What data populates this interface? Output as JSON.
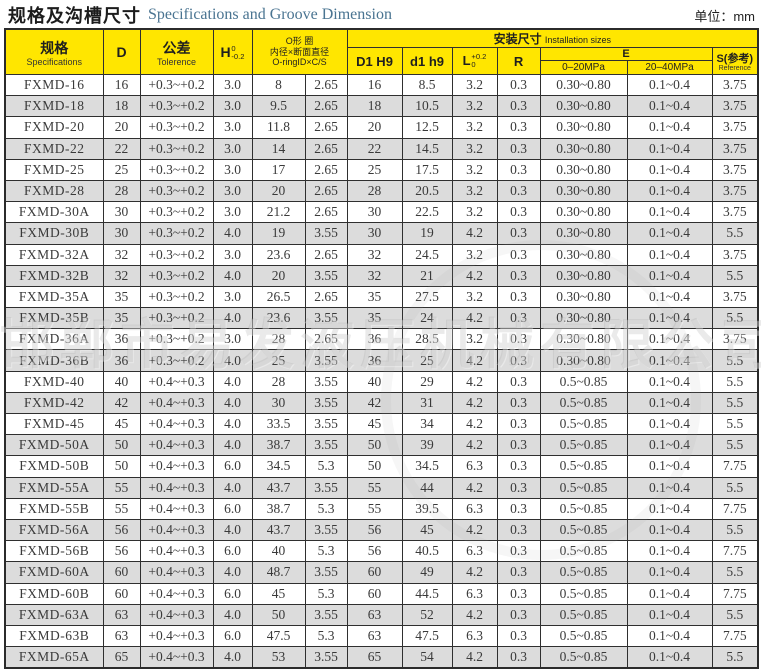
{
  "page": {
    "title_cn": "规格及沟槽尺寸",
    "title_en": "Specifications and Groove Dimension",
    "unit_label": "单位：mm"
  },
  "header": {
    "spec_cn": "规格",
    "spec_en": "Specifications",
    "d": "D",
    "tolerance_cn": "公差",
    "tolerance_en": "Tolerence",
    "h_label": "H",
    "h_sup": "0",
    "h_sub": "-0.2",
    "oring_line1": "O形 圈",
    "oring_line2": "内径×断面直径",
    "oring_line3": "O-ringID×C/S",
    "install_cn": "安装尺寸",
    "install_en": "Installation sizes",
    "d1h9": "D1 H9",
    "d1h9_small": "d1 h9",
    "l_label": "L",
    "l_sup": "+0.2",
    "l_sub": "0",
    "r": "R",
    "e": "E",
    "e_sub1": "0–20MPa",
    "e_sub2": "20–40MPa",
    "s_label": "S(参考)",
    "s_sub": "Reference"
  },
  "watermark_text": "邯郸市易发液压机械有限公司",
  "table": {
    "column_keys": [
      "spec",
      "d",
      "tolerance",
      "h",
      "oring-id",
      "oring-cs",
      "d1-h9",
      "d1-h9-small",
      "l",
      "r",
      "e-0-20mpa",
      "e-20-40mpa",
      "s-ref"
    ],
    "rows": [
      [
        "FXMD-16",
        "16",
        "+0.3~+0.2",
        "3.0",
        "8",
        "2.65",
        "16",
        "8.5",
        "3.2",
        "0.3",
        "0.30~0.80",
        "0.1~0.4",
        "3.75"
      ],
      [
        "FXMD-18",
        "18",
        "+0.3~+0.2",
        "3.0",
        "9.5",
        "2.65",
        "18",
        "10.5",
        "3.2",
        "0.3",
        "0.30~0.80",
        "0.1~0.4",
        "3.75"
      ],
      [
        "FXMD-20",
        "20",
        "+0.3~+0.2",
        "3.0",
        "11.8",
        "2.65",
        "20",
        "12.5",
        "3.2",
        "0.3",
        "0.30~0.80",
        "0.1~0.4",
        "3.75"
      ],
      [
        "FXMD-22",
        "22",
        "+0.3~+0.2",
        "3.0",
        "14",
        "2.65",
        "22",
        "14.5",
        "3.2",
        "0.3",
        "0.30~0.80",
        "0.1~0.4",
        "3.75"
      ],
      [
        "FXMD-25",
        "25",
        "+0.3~+0.2",
        "3.0",
        "17",
        "2.65",
        "25",
        "17.5",
        "3.2",
        "0.3",
        "0.30~0.80",
        "0.1~0.4",
        "3.75"
      ],
      [
        "FXMD-28",
        "28",
        "+0.3~+0.2",
        "3.0",
        "20",
        "2.65",
        "28",
        "20.5",
        "3.2",
        "0.3",
        "0.30~0.80",
        "0.1~0.4",
        "3.75"
      ],
      [
        "FXMD-30A",
        "30",
        "+0.3~+0.2",
        "3.0",
        "21.2",
        "2.65",
        "30",
        "22.5",
        "3.2",
        "0.3",
        "0.30~0.80",
        "0.1~0.4",
        "3.75"
      ],
      [
        "FXMD-30B",
        "30",
        "+0.3~+0.2",
        "4.0",
        "19",
        "3.55",
        "30",
        "19",
        "4.2",
        "0.3",
        "0.30~0.80",
        "0.1~0.4",
        "5.5"
      ],
      [
        "FXMD-32A",
        "32",
        "+0.3~+0.2",
        "3.0",
        "23.6",
        "2.65",
        "32",
        "24.5",
        "3.2",
        "0.3",
        "0.30~0.80",
        "0.1~0.4",
        "3.75"
      ],
      [
        "FXMD-32B",
        "32",
        "+0.3~+0.2",
        "4.0",
        "20",
        "3.55",
        "32",
        "21",
        "4.2",
        "0.3",
        "0.30~0.80",
        "0.1~0.4",
        "5.5"
      ],
      [
        "FXMD-35A",
        "35",
        "+0.3~+0.2",
        "3.0",
        "26.5",
        "2.65",
        "35",
        "27.5",
        "3.2",
        "0.3",
        "0.30~0.80",
        "0.1~0.4",
        "3.75"
      ],
      [
        "FXMD-35B",
        "35",
        "+0.3~+0.2",
        "4.0",
        "23.6",
        "3.55",
        "35",
        "24",
        "4.2",
        "0.3",
        "0.30~0.80",
        "0.1~0.4",
        "5.5"
      ],
      [
        "FXMD-36A",
        "36",
        "+0.3~+0.2",
        "3.0",
        "28",
        "2.65",
        "36",
        "28.5",
        "3.2",
        "0.3",
        "0.30~0.80",
        "0.1~0.4",
        "3.75"
      ],
      [
        "FXMD-36B",
        "36",
        "+0.3~+0.2",
        "4.0",
        "25",
        "3.55",
        "36",
        "25",
        "4.2",
        "0.3",
        "0.30~0.80",
        "0.1~0.4",
        "5.5"
      ],
      [
        "FXMD-40",
        "40",
        "+0.4~+0.3",
        "4.0",
        "28",
        "3.55",
        "40",
        "29",
        "4.2",
        "0.3",
        "0.5~0.85",
        "0.1~0.4",
        "5.5"
      ],
      [
        "FXMD-42",
        "42",
        "+0.4~+0.3",
        "4.0",
        "30",
        "3.55",
        "42",
        "31",
        "4.2",
        "0.3",
        "0.5~0.85",
        "0.1~0.4",
        "5.5"
      ],
      [
        "FXMD-45",
        "45",
        "+0.4~+0.3",
        "4.0",
        "33.5",
        "3.55",
        "45",
        "34",
        "4.2",
        "0.3",
        "0.5~0.85",
        "0.1~0.4",
        "5.5"
      ],
      [
        "FXMD-50A",
        "50",
        "+0.4~+0.3",
        "4.0",
        "38.7",
        "3.55",
        "50",
        "39",
        "4.2",
        "0.3",
        "0.5~0.85",
        "0.1~0.4",
        "5.5"
      ],
      [
        "FXMD-50B",
        "50",
        "+0.4~+0.3",
        "6.0",
        "34.5",
        "5.3",
        "50",
        "34.5",
        "6.3",
        "0.3",
        "0.5~0.85",
        "0.1~0.4",
        "7.75"
      ],
      [
        "FXMD-55A",
        "55",
        "+0.4~+0.3",
        "4.0",
        "43.7",
        "3.55",
        "55",
        "44",
        "4.2",
        "0.3",
        "0.5~0.85",
        "0.1~0.4",
        "5.5"
      ],
      [
        "FXMD-55B",
        "55",
        "+0.4~+0.3",
        "6.0",
        "38.7",
        "5.3",
        "55",
        "39.5",
        "6.3",
        "0.3",
        "0.5~0.85",
        "0.1~0.4",
        "7.75"
      ],
      [
        "FXMD-56A",
        "56",
        "+0.4~+0.3",
        "4.0",
        "43.7",
        "3.55",
        "56",
        "45",
        "4.2",
        "0.3",
        "0.5~0.85",
        "0.1~0.4",
        "5.5"
      ],
      [
        "FXMD-56B",
        "56",
        "+0.4~+0.3",
        "6.0",
        "40",
        "5.3",
        "56",
        "40.5",
        "6.3",
        "0.3",
        "0.5~0.85",
        "0.1~0.4",
        "7.75"
      ],
      [
        "FXMD-60A",
        "60",
        "+0.4~+0.3",
        "4.0",
        "48.7",
        "3.55",
        "60",
        "49",
        "4.2",
        "0.3",
        "0.5~0.85",
        "0.1~0.4",
        "5.5"
      ],
      [
        "FXMD-60B",
        "60",
        "+0.4~+0.3",
        "6.0",
        "45",
        "5.3",
        "60",
        "44.5",
        "6.3",
        "0.3",
        "0.5~0.85",
        "0.1~0.4",
        "7.75"
      ],
      [
        "FXMD-63A",
        "63",
        "+0.4~+0.3",
        "4.0",
        "50",
        "3.55",
        "63",
        "52",
        "4.2",
        "0.3",
        "0.5~0.85",
        "0.1~0.4",
        "5.5"
      ],
      [
        "FXMD-63B",
        "63",
        "+0.4~+0.3",
        "6.0",
        "47.5",
        "5.3",
        "63",
        "47.5",
        "6.3",
        "0.3",
        "0.5~0.85",
        "0.1~0.4",
        "7.75"
      ],
      [
        "FXMD-65A",
        "65",
        "+0.4~+0.3",
        "4.0",
        "53",
        "3.55",
        "65",
        "54",
        "4.2",
        "0.3",
        "0.5~0.85",
        "0.1~0.4",
        "5.5"
      ]
    ]
  },
  "colors": {
    "header_yellow": "#ffe600",
    "alt_row_gray": "#dcdcdc",
    "border_dark": "#2f2f2f",
    "title_en_blue": "#4a7491"
  }
}
